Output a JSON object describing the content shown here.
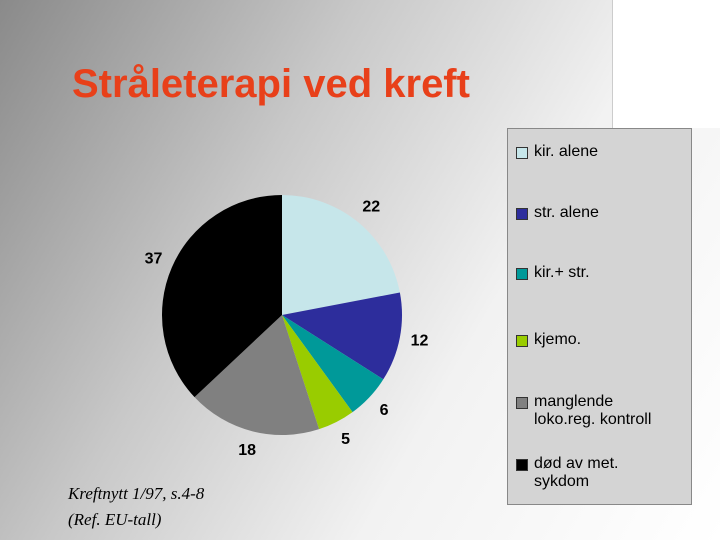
{
  "chart_data": {
    "type": "pie",
    "title": "Stråleterapi ved kreft",
    "categories": [
      "kir. alene",
      "str. alene",
      "kir.+ str.",
      "kjemo.",
      "manglende\nloko.reg. kontroll",
      "død av met.\nsykdom"
    ],
    "values": [
      22,
      12,
      6,
      5,
      18,
      37
    ],
    "colors": [
      "#c6e6ea",
      "#2d2d9c",
      "#009999",
      "#99cc00",
      "#808080",
      "#000000"
    ],
    "source": [
      "Kreftnytt 1/97, s.4-8",
      "(Ref. EU-tall)"
    ]
  }
}
